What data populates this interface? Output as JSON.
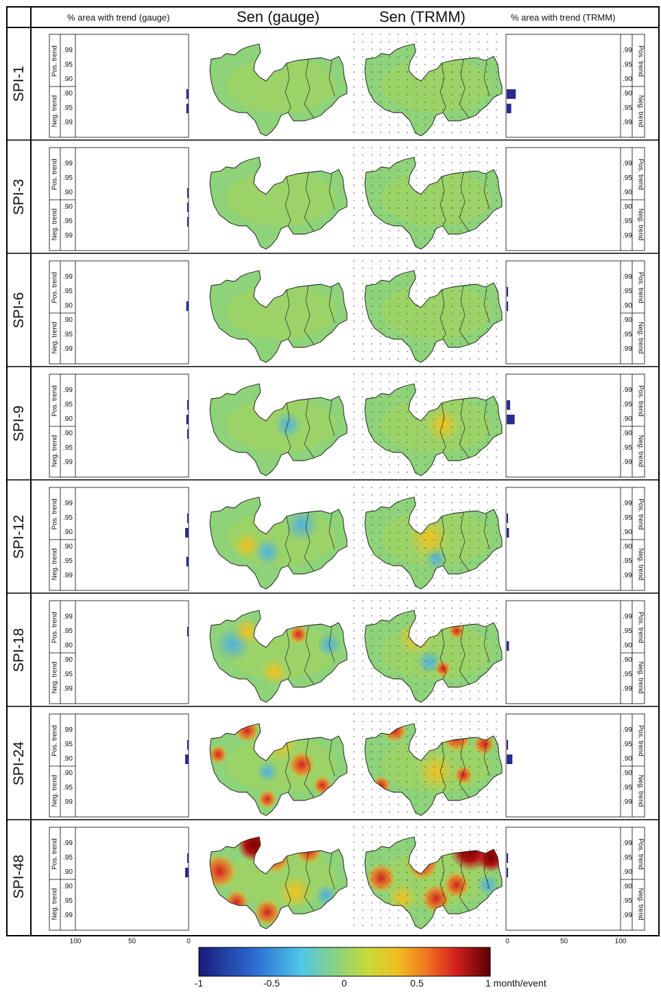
{
  "headers": {
    "gauge_pct": "% area with trend (gauge)",
    "sen_gauge": "Sen (gauge)",
    "sen_trmm": "Sen (TRMM)",
    "trmm_pct": "% area with trend (TRMM)"
  },
  "rows": [
    {
      "label": "SPI-1"
    },
    {
      "label": "SPI-3"
    },
    {
      "label": "SPI-6"
    },
    {
      "label": "SPI-9"
    },
    {
      "label": "SPI-12"
    },
    {
      "label": "SPI-18"
    },
    {
      "label": "SPI-24"
    },
    {
      "label": "SPI-48"
    }
  ],
  "panel_labels": {
    "levels_pos": [
      ".99",
      ".95",
      ".90"
    ],
    "levels_neg": [
      ".90",
      ".95",
      ".99"
    ],
    "pos_trend": "Pos. trend",
    "neg_trend": "Neg. trend"
  },
  "x_ticks_gauge": [
    "100",
    "50",
    "0"
  ],
  "x_ticks_trmm": [
    "0",
    "50",
    "100"
  ],
  "colorbar": {
    "ticks": [
      "-1",
      "-0.5",
      "0",
      "0.5",
      "1 month/event"
    ],
    "colors": [
      "#1a1a7a",
      "#2e6fd6",
      "#4fc7e6",
      "#8ed27a",
      "#c8d93a",
      "#f0c020",
      "#f07820",
      "#d62020",
      "#5a0000"
    ]
  },
  "chart_data": {
    "type": "bar",
    "title": "",
    "xlabel": "% area with trend",
    "ylabel": "",
    "categories": [
      "Pos .99",
      "Pos .95",
      "Pos .90",
      "Neg .90",
      "Neg .95",
      "Neg .99"
    ],
    "xlim": [
      0,
      100
    ],
    "bar_color": "#2b2b8f",
    "series": [
      {
        "name": "SPI-1 gauge",
        "values": [
          0,
          0,
          0,
          2,
          2,
          0
        ]
      },
      {
        "name": "SPI-1 TRMM",
        "values": [
          0,
          0,
          0,
          8,
          4,
          0
        ]
      },
      {
        "name": "SPI-3 gauge",
        "values": [
          0,
          0,
          1,
          1,
          1,
          0
        ]
      },
      {
        "name": "SPI-3 TRMM",
        "values": [
          0,
          0,
          0,
          0,
          0,
          0
        ]
      },
      {
        "name": "SPI-6 gauge",
        "values": [
          0,
          0,
          2,
          0,
          0,
          0
        ]
      },
      {
        "name": "SPI-6 TRMM",
        "values": [
          0,
          0.5,
          1,
          0,
          0,
          0
        ]
      },
      {
        "name": "SPI-9 gauge",
        "values": [
          0,
          1,
          2,
          1,
          0,
          0
        ]
      },
      {
        "name": "SPI-9 TRMM",
        "values": [
          0,
          3,
          7,
          0,
          0,
          0
        ]
      },
      {
        "name": "SPI-12 gauge",
        "values": [
          0,
          1,
          3,
          0,
          2,
          0
        ]
      },
      {
        "name": "SPI-12 TRMM",
        "values": [
          0,
          1,
          2,
          0,
          0,
          0
        ]
      },
      {
        "name": "SPI-18 gauge",
        "values": [
          0,
          1,
          0,
          0,
          0,
          0
        ]
      },
      {
        "name": "SPI-18 TRMM",
        "values": [
          0,
          0,
          2,
          0,
          0,
          0
        ]
      },
      {
        "name": "SPI-24 gauge",
        "values": [
          0,
          1,
          3,
          0,
          0,
          0
        ]
      },
      {
        "name": "SPI-24 TRMM",
        "values": [
          0,
          1,
          5,
          0,
          0,
          0
        ]
      },
      {
        "name": "SPI-48 gauge",
        "values": [
          0,
          1,
          3,
          0,
          0,
          0
        ]
      },
      {
        "name": "SPI-48 TRMM",
        "values": [
          0,
          1,
          1,
          0,
          0,
          0
        ]
      }
    ]
  }
}
